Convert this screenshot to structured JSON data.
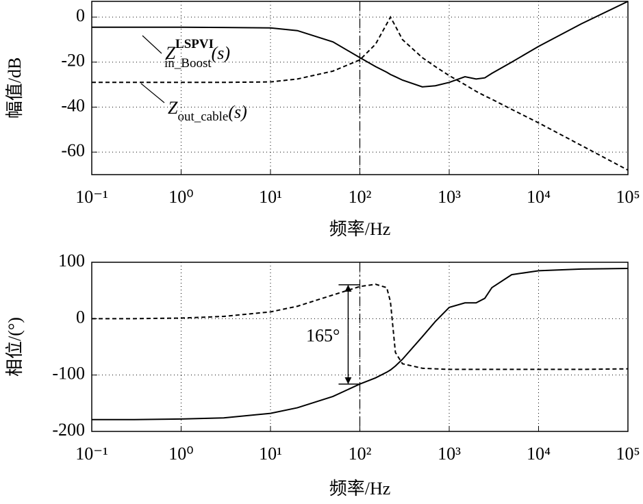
{
  "chart_data": [
    {
      "type": "line",
      "xscale": "log",
      "grid": true,
      "ylabel": "幅值/dB",
      "xlabel": "频率/Hz",
      "xlim": [
        0.1,
        100000
      ],
      "ylim": [
        -70,
        7
      ],
      "xticks": [
        {
          "value": 0.1,
          "label": "10⁻¹"
        },
        {
          "value": 1,
          "label": "10⁰"
        },
        {
          "value": 10,
          "label": "10¹"
        },
        {
          "value": 100,
          "label": "10²"
        },
        {
          "value": 1000,
          "label": "10³"
        },
        {
          "value": 10000,
          "label": "10⁴"
        },
        {
          "value": 100000,
          "label": "10⁵"
        }
      ],
      "yticks": [
        -60,
        -40,
        -20,
        0
      ],
      "vline": 100,
      "x": [
        0.1,
        0.3,
        1,
        3,
        10,
        20,
        50,
        100,
        150,
        200,
        220,
        250,
        300,
        500,
        700,
        1000,
        1500,
        2000,
        2500,
        3000,
        5000,
        10000,
        30000,
        100000
      ],
      "series": [
        {
          "name": {
            "base": "Z",
            "sup": "LSPVI",
            "sub": "in_Boost",
            "arg": "(s)"
          },
          "color": "#000",
          "dashed": false,
          "values": [
            -4.5,
            -4.5,
            -4.5,
            -4.6,
            -4.8,
            -6,
            -11,
            -18,
            -22,
            -24.5,
            -25.5,
            -26.5,
            -28,
            -31,
            -30.5,
            -29,
            -26.5,
            -27.5,
            -27,
            -25,
            -20,
            -13,
            -3,
            7
          ]
        },
        {
          "name": {
            "base": "Z",
            "sub": "out_cable",
            "arg": "(s)"
          },
          "color": "#000",
          "dashed": true,
          "values": [
            -29,
            -29,
            -29,
            -29,
            -28.8,
            -27.5,
            -24,
            -19,
            -12,
            -3,
            0,
            -4,
            -10,
            -18,
            -22,
            -26,
            -30,
            -33,
            -35,
            -36.5,
            -41,
            -47,
            -57,
            -68
          ]
        }
      ]
    },
    {
      "type": "line",
      "xscale": "log",
      "grid": true,
      "ylabel": "相位/(°)",
      "xlabel": "频率/Hz",
      "xlim": [
        0.1,
        100000
      ],
      "ylim": [
        -200,
        100
      ],
      "xticks": [
        {
          "value": 0.1,
          "label": "10⁻¹"
        },
        {
          "value": 1,
          "label": "10⁰"
        },
        {
          "value": 10,
          "label": "10¹"
        },
        {
          "value": 100,
          "label": "10²"
        },
        {
          "value": 1000,
          "label": "10³"
        },
        {
          "value": 10000,
          "label": "10⁴"
        },
        {
          "value": 100000,
          "label": "10⁵"
        }
      ],
      "yticks": [
        -200,
        -100,
        0,
        100
      ],
      "vline": 100,
      "annotation": {
        "text": "165°",
        "x": 74,
        "from": 60,
        "to": -116
      },
      "x": [
        0.1,
        0.3,
        1,
        3,
        10,
        20,
        50,
        100,
        150,
        200,
        220,
        250,
        300,
        500,
        700,
        1000,
        1500,
        2000,
        2500,
        3000,
        5000,
        10000,
        30000,
        100000
      ],
      "series": [
        {
          "color": "#000",
          "dashed": false,
          "values": [
            -179,
            -179,
            -178,
            -176,
            -168,
            -158,
            -138,
            -116,
            -105,
            -95,
            -91,
            -84,
            -72,
            -32,
            -5,
            20,
            28,
            28,
            36,
            55,
            78,
            85,
            88,
            89
          ]
        },
        {
          "color": "#000",
          "dashed": true,
          "values": [
            0,
            0,
            1,
            4,
            12,
            22,
            42,
            57,
            61,
            55,
            30,
            -60,
            -80,
            -88,
            -89,
            -90,
            -90,
            -90,
            -90,
            -90,
            -90,
            -90,
            -90,
            -89
          ]
        }
      ]
    }
  ]
}
